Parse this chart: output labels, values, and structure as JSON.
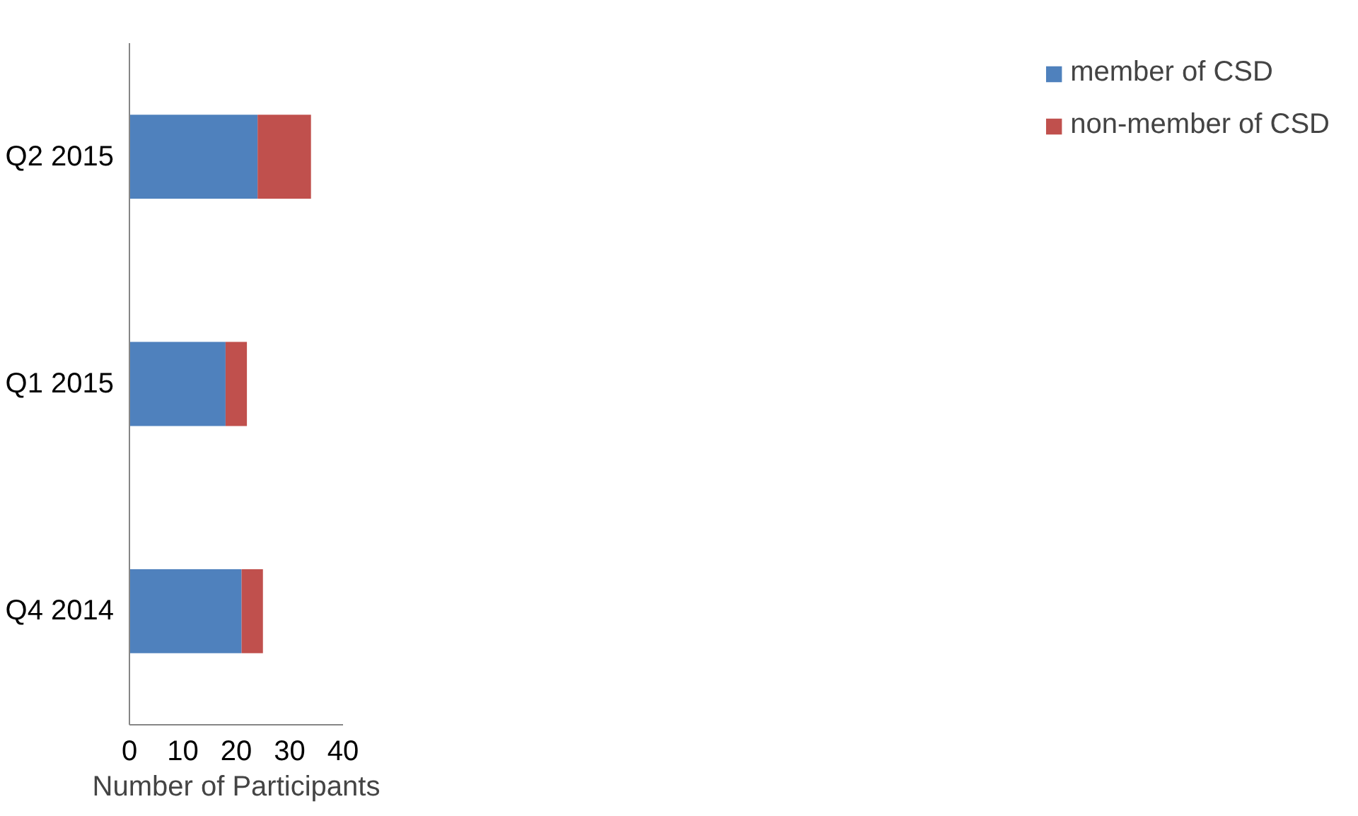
{
  "chart_data": {
    "type": "bar",
    "orientation": "horizontal",
    "stacked": true,
    "xlabel": "Number of Participants",
    "categories": [
      "Q2 2015",
      "Q1 2015",
      "Q4 2014"
    ],
    "series": [
      {
        "name": "member of CSD",
        "color": "#4f81bd",
        "values": [
          24,
          18,
          21
        ]
      },
      {
        "name": "non-member of CSD",
        "color": "#c0504d",
        "values": [
          10,
          4,
          4
        ]
      }
    ],
    "xlim": [
      0,
      40
    ],
    "xticks": [
      0,
      10,
      20,
      30,
      40
    ],
    "grid": false,
    "legend": "right"
  }
}
